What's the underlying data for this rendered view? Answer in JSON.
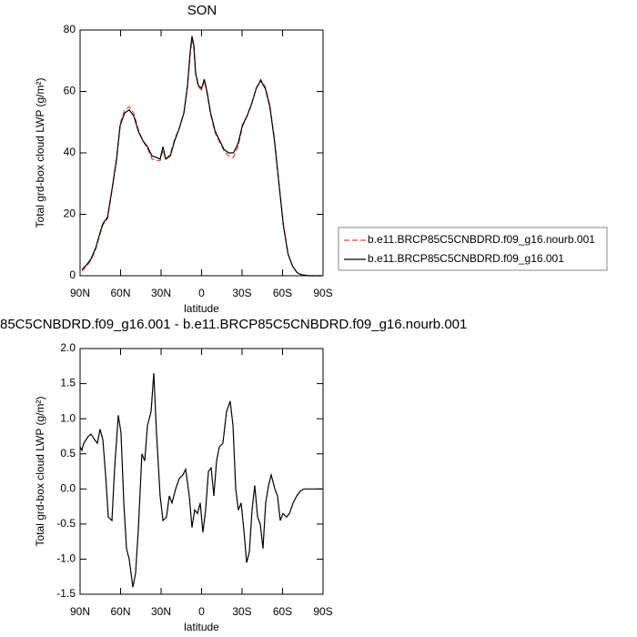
{
  "chart_data": [
    {
      "type": "line",
      "title": "SON",
      "xlabel": "latitude",
      "ylabel": "Total grd-box cloud LWP (g/m²)",
      "xlim": [
        90,
        -90
      ],
      "ylim": [
        0,
        80
      ],
      "xticks": [
        {
          "value": 90,
          "label": "90N"
        },
        {
          "value": 60,
          "label": "60N"
        },
        {
          "value": 30,
          "label": "30N"
        },
        0,
        {
          "value": -30,
          "label": "30S"
        },
        {
          "value": -60,
          "label": "60S"
        },
        {
          "value": -90,
          "label": "90S"
        }
      ],
      "yticks": [
        0,
        20,
        40,
        60,
        80
      ],
      "x": [
        88.6,
        85.3,
        81.9,
        78.5,
        75.2,
        73.1,
        69.7,
        66.4,
        63,
        60.3,
        57,
        53.6,
        50.2,
        46.8,
        43.5,
        40.1,
        36.7,
        33.4,
        30.7,
        28.6,
        26.6,
        23.2,
        19.9,
        16.5,
        13.1,
        10.4,
        8.4,
        7.1,
        5.7,
        4.4,
        2.4,
        0,
        -2,
        -4,
        -6.7,
        -10.1,
        -13.4,
        -16.8,
        -20.2,
        -23.6,
        -27,
        -30.3,
        -33.7,
        -37.1,
        -40.5,
        -43.8,
        -47.2,
        -50.6,
        -54,
        -57.3,
        -60.7,
        -64.1,
        -67.5,
        -70.8,
        -74.2,
        -79.6,
        -89
      ],
      "legend": "right",
      "series": [
        {
          "name": "b.e11.BRCP85C5CNBDRD.f09_g16.nourb.001",
          "color": "#e8483a",
          "dashed": true,
          "values": [
            1.5,
            3,
            5,
            8.5,
            13.5,
            16.5,
            18.5,
            27.5,
            37.5,
            49.5,
            54,
            55,
            53,
            47.5,
            44,
            41.5,
            38,
            37.5,
            37.5,
            41,
            38,
            39.5,
            44.5,
            48,
            53,
            61.5,
            72,
            77,
            74,
            65.5,
            61.5,
            60.5,
            63.5,
            59.5,
            52.5,
            46.5,
            43.5,
            40.5,
            39,
            38.5,
            42,
            48.5,
            52,
            56,
            61,
            64,
            61.5,
            55.5,
            44.5,
            30.5,
            16.5,
            7,
            3,
            1,
            0.3,
            0,
            0
          ]
        },
        {
          "name": "b.e11.BRCP85C5CNBDRD.f09_g16.001",
          "color": "#000000",
          "dashed": false,
          "values": [
            2,
            3.5,
            5.5,
            9,
            14,
            17,
            19,
            28,
            38,
            49,
            53,
            54,
            52,
            47,
            44,
            42,
            39,
            38.5,
            38,
            42,
            38,
            39,
            44,
            48,
            53,
            62,
            73,
            78,
            75,
            66,
            62,
            61,
            64,
            60,
            53,
            47,
            44,
            41,
            40,
            40,
            43,
            49,
            52,
            56,
            61,
            63.5,
            61,
            55,
            44,
            30,
            16,
            7,
            3,
            1,
            0.3,
            0,
            0
          ]
        }
      ]
    },
    {
      "type": "line",
      "title": "85C5CNBDRD.f09_g16.001 - b.e11.BRCP85C5CNBDRD.f09_g16.nourb.001",
      "xlabel": "latitude",
      "ylabel": "Total grd-box cloud LWP (g/m²)",
      "xlim": [
        90,
        -90
      ],
      "ylim": [
        -1.5,
        2.0
      ],
      "xticks": [
        {
          "value": 90,
          "label": "90N"
        },
        {
          "value": 60,
          "label": "60N"
        },
        {
          "value": 30,
          "label": "30N"
        },
        0,
        {
          "value": -30,
          "label": "30S"
        },
        {
          "value": -60,
          "label": "60S"
        },
        {
          "value": -90,
          "label": "90S"
        }
      ],
      "yticks": [
        -1.5,
        {
          "value": -1,
          "label": "-1.0"
        },
        -0.5,
        {
          "value": 0,
          "label": "0.0"
        },
        0.5,
        {
          "value": 1,
          "label": "1.0"
        },
        1.5,
        {
          "value": 2,
          "label": "2.0"
        }
      ],
      "x": [
        90,
        88.7,
        87.3,
        83.9,
        81.9,
        79.2,
        77.2,
        75.2,
        73.1,
        71.1,
        69.1,
        66.4,
        64.4,
        61.7,
        59.7,
        57.6,
        55.6,
        53.6,
        50.9,
        48.9,
        46.9,
        44.2,
        42.1,
        40.1,
        37.4,
        35.4,
        33.4,
        30.7,
        28.6,
        26,
        23.9,
        21.9,
        19.2,
        16.5,
        13.8,
        11.8,
        9.1,
        7.1,
        5.1,
        3,
        1,
        -1,
        -3,
        -5.1,
        -7.1,
        -9.1,
        -11.1,
        -13.2,
        -15.8,
        -18.5,
        -21.2,
        -23.3,
        -25.3,
        -27.3,
        -29.3,
        -31.4,
        -33.4,
        -35.4,
        -37.4,
        -39.4,
        -41.5,
        -43.5,
        -45.5,
        -47.5,
        -49.6,
        -51.6,
        -54.3,
        -56.3,
        -58.3,
        -60.3,
        -63,
        -65.1,
        -67.8,
        -70.5,
        -73.2,
        -75.9,
        -79.9,
        -89.3
      ],
      "series": [
        {
          "color": "#000000",
          "dashed": false,
          "values": [
            0.6,
            0.55,
            0.65,
            0.75,
            0.78,
            0.7,
            0.65,
            0.85,
            0.7,
            0.2,
            -0.4,
            -0.45,
            0.3,
            1.05,
            0.8,
            -0.2,
            -0.85,
            -1.0,
            -1.4,
            -1.2,
            -0.6,
            0.5,
            0.4,
            0.9,
            1.1,
            1.65,
            0.8,
            -0.1,
            -0.45,
            -0.4,
            -0.1,
            -0.2,
            0.0,
            0.15,
            0.2,
            0.28,
            -0.1,
            -0.55,
            -0.3,
            -0.35,
            -0.2,
            -0.62,
            -0.3,
            0.25,
            0.3,
            -0.1,
            0.4,
            0.6,
            0.65,
            1.1,
            1.25,
            0.9,
            0.0,
            -0.3,
            -0.2,
            -0.6,
            -1.05,
            -0.9,
            -0.3,
            0.05,
            -0.4,
            -0.5,
            -0.85,
            -0.2,
            0.05,
            0.2,
            0.0,
            -0.1,
            -0.45,
            -0.35,
            -0.4,
            -0.35,
            -0.2,
            -0.1,
            -0.03,
            0,
            0,
            0
          ]
        }
      ]
    }
  ]
}
